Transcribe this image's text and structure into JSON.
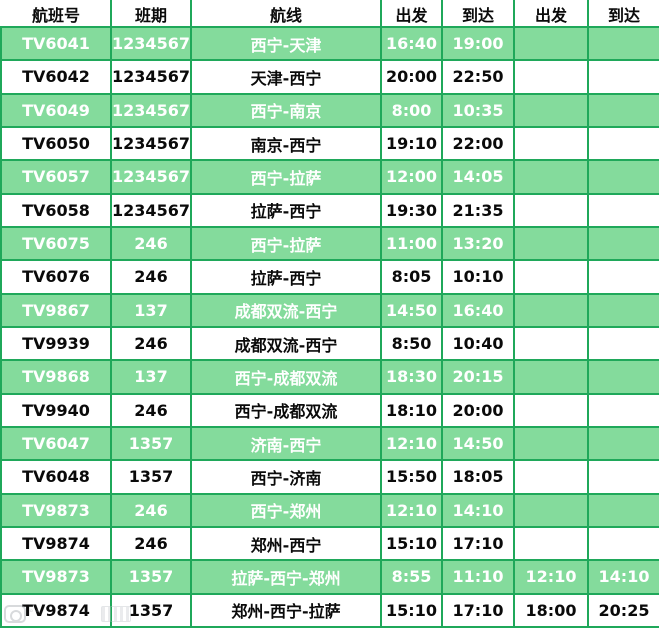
{
  "colors": {
    "row_green": "#84db9c",
    "border_green": "#1fa85a",
    "header_text": "#0a0a0a",
    "green_row_text": "#ffffff",
    "white_row_text": "#0a0a0a"
  },
  "table": {
    "headers": [
      "航班号",
      "班期",
      "航线",
      "出发",
      "到达",
      "出发",
      "到达"
    ],
    "rows": [
      {
        "flight": "TV6041",
        "days": "1234567",
        "route": "西宁-天津",
        "dep1": "16:40",
        "arr1": "19:00",
        "dep2": "",
        "arr2": "",
        "green": true
      },
      {
        "flight": "TV6042",
        "days": "1234567",
        "route": "天津-西宁",
        "dep1": "20:00",
        "arr1": "22:50",
        "dep2": "",
        "arr2": "",
        "green": false
      },
      {
        "flight": "TV6049",
        "days": "1234567",
        "route": "西宁-南京",
        "dep1": "8:00",
        "arr1": "10:35",
        "dep2": "",
        "arr2": "",
        "green": true
      },
      {
        "flight": "TV6050",
        "days": "1234567",
        "route": "南京-西宁",
        "dep1": "19:10",
        "arr1": "22:00",
        "dep2": "",
        "arr2": "",
        "green": false
      },
      {
        "flight": "TV6057",
        "days": "1234567",
        "route": "西宁-拉萨",
        "dep1": "12:00",
        "arr1": "14:05",
        "dep2": "",
        "arr2": "",
        "green": true
      },
      {
        "flight": "TV6058",
        "days": "1234567",
        "route": "拉萨-西宁",
        "dep1": "19:30",
        "arr1": "21:35",
        "dep2": "",
        "arr2": "",
        "green": false
      },
      {
        "flight": "TV6075",
        "days": "246",
        "route": "西宁-拉萨",
        "dep1": "11:00",
        "arr1": "13:20",
        "dep2": "",
        "arr2": "",
        "green": true
      },
      {
        "flight": "TV6076",
        "days": "246",
        "route": "拉萨-西宁",
        "dep1": "8:05",
        "arr1": "10:10",
        "dep2": "",
        "arr2": "",
        "green": false
      },
      {
        "flight": "TV9867",
        "days": "137",
        "route": "成都双流-西宁",
        "dep1": "14:50",
        "arr1": "16:40",
        "dep2": "",
        "arr2": "",
        "green": true
      },
      {
        "flight": "TV9939",
        "days": "246",
        "route": "成都双流-西宁",
        "dep1": "8:50",
        "arr1": "10:40",
        "dep2": "",
        "arr2": "",
        "green": false
      },
      {
        "flight": "TV9868",
        "days": "137",
        "route": "西宁-成都双流",
        "dep1": "18:30",
        "arr1": "20:15",
        "dep2": "",
        "arr2": "",
        "green": true
      },
      {
        "flight": "TV9940",
        "days": "246",
        "route": "西宁-成都双流",
        "dep1": "18:10",
        "arr1": "20:00",
        "dep2": "",
        "arr2": "",
        "green": false
      },
      {
        "flight": "TV6047",
        "days": "1357",
        "route": "济南-西宁",
        "dep1": "12:10",
        "arr1": "14:50",
        "dep2": "",
        "arr2": "",
        "green": true
      },
      {
        "flight": "TV6048",
        "days": "1357",
        "route": "西宁-济南",
        "dep1": "15:50",
        "arr1": "18:05",
        "dep2": "",
        "arr2": "",
        "green": false
      },
      {
        "flight": "TV9873",
        "days": "246",
        "route": "西宁-郑州",
        "dep1": "12:10",
        "arr1": "14:10",
        "dep2": "",
        "arr2": "",
        "green": true
      },
      {
        "flight": "TV9874",
        "days": "246",
        "route": "郑州-西宁",
        "dep1": "15:10",
        "arr1": "17:10",
        "dep2": "",
        "arr2": "",
        "green": false
      },
      {
        "flight": "TV9873",
        "days": "1357",
        "route": "拉萨-西宁-郑州",
        "dep1": "8:55",
        "arr1": "11:10",
        "dep2": "12:10",
        "arr2": "14:10",
        "green": true
      },
      {
        "flight": "TV9874",
        "days": "1357",
        "route": "郑州-西宁-拉萨",
        "dep1": "15:10",
        "arr1": "17:10",
        "dep2": "18:00",
        "arr2": "20:25",
        "green": false
      }
    ]
  },
  "watermark": {
    "icon": "photo-app-logo-watermark"
  }
}
